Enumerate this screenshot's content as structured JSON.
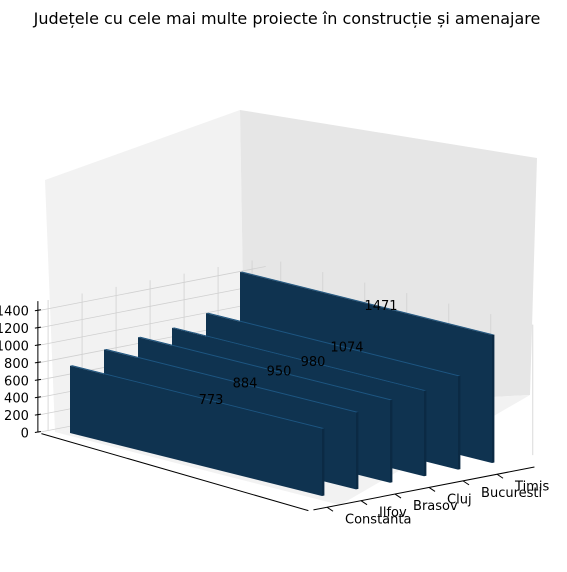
{
  "chart_data": {
    "type": "bar",
    "title": "Județele cu cele mai multe proiecte în construcție și amenajare",
    "categories": [
      "Constanta",
      "Ilfov",
      "Brasov",
      "Cluj",
      "Bucuresti",
      "Timis"
    ],
    "values": [
      773,
      884,
      950,
      980,
      1074,
      1471
    ],
    "data_labels": [
      "773",
      "884",
      "950",
      "980",
      "1074",
      "1471"
    ],
    "z_ticks": [
      {
        "value": 0,
        "label": "0"
      },
      {
        "value": 200,
        "label": "200"
      },
      {
        "value": 400,
        "label": "400"
      },
      {
        "value": 600,
        "label": "600"
      },
      {
        "value": 800,
        "label": "800"
      },
      {
        "value": 1000,
        "label": "1000"
      },
      {
        "value": 1200,
        "label": "1200"
      },
      {
        "value": 1400,
        "label": "1400"
      }
    ],
    "zlim": [
      0,
      1471
    ],
    "projection": "3d",
    "grid": true,
    "colors": {
      "bar_front": "#0f3350",
      "bar_top": "#1d5580",
      "bar_side": "#0b2a44",
      "pane_light": "#f2f2f2",
      "pane_dark": "#e6e6e6",
      "grid": "#d0d0d0"
    }
  }
}
